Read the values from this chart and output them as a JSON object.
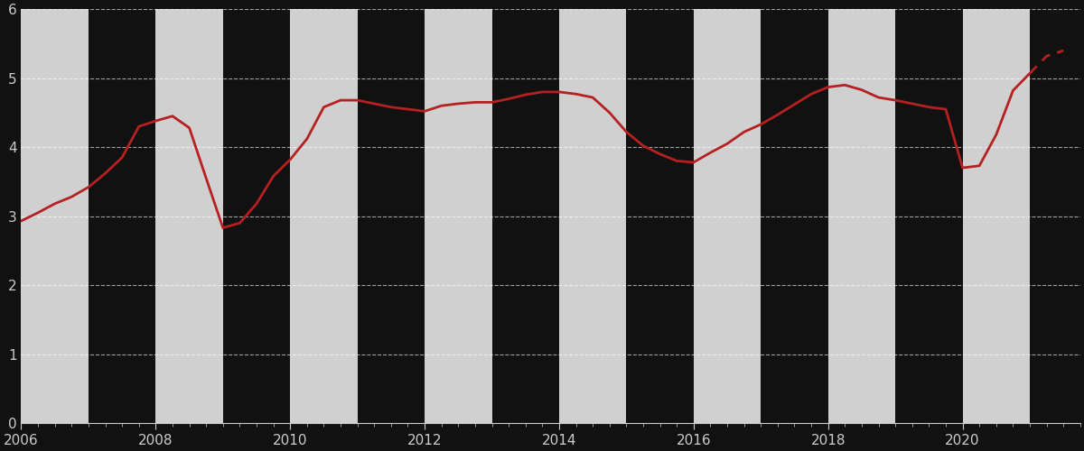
{
  "xlim": [
    2006.0,
    2021.75
  ],
  "ylim": [
    0,
    6
  ],
  "yticks": [
    0,
    1,
    2,
    3,
    4,
    5,
    6
  ],
  "xticks": [
    2006,
    2008,
    2010,
    2012,
    2014,
    2016,
    2018,
    2020
  ],
  "fig_bg_color": "#111111",
  "axes_bg_color": "#111111",
  "band_color_light": "#d0d0d0",
  "band_color_dark": "#111111",
  "line_color": "#b52020",
  "line_width": 2.0,
  "grid_color": "#ffffff",
  "tick_label_color": "#cccccc",
  "band_years": [
    [
      2006,
      2007,
      "#d0d0d0"
    ],
    [
      2007,
      2008,
      "#111111"
    ],
    [
      2008,
      2009,
      "#d0d0d0"
    ],
    [
      2009,
      2010,
      "#111111"
    ],
    [
      2010,
      2011,
      "#d0d0d0"
    ],
    [
      2011,
      2012,
      "#111111"
    ],
    [
      2012,
      2013,
      "#d0d0d0"
    ],
    [
      2013,
      2014,
      "#111111"
    ],
    [
      2014,
      2015,
      "#d0d0d0"
    ],
    [
      2015,
      2016,
      "#111111"
    ],
    [
      2016,
      2017,
      "#d0d0d0"
    ],
    [
      2017,
      2018,
      "#111111"
    ],
    [
      2018,
      2019,
      "#d0d0d0"
    ],
    [
      2019,
      2020,
      "#111111"
    ],
    [
      2020,
      2021,
      "#d0d0d0"
    ],
    [
      2021,
      2022,
      "#111111"
    ]
  ],
  "data_solid": {
    "x": [
      2006.0,
      2006.25,
      2006.5,
      2006.75,
      2007.0,
      2007.25,
      2007.5,
      2007.75,
      2008.0,
      2008.25,
      2008.5,
      2008.75,
      2009.0,
      2009.25,
      2009.5,
      2009.75,
      2010.0,
      2010.25,
      2010.5,
      2010.75,
      2011.0,
      2011.25,
      2011.5,
      2011.75,
      2012.0,
      2012.25,
      2012.5,
      2012.75,
      2013.0,
      2013.25,
      2013.5,
      2013.75,
      2014.0,
      2014.25,
      2014.5,
      2014.75,
      2015.0,
      2015.25,
      2015.5,
      2015.75,
      2016.0,
      2016.25,
      2016.5,
      2016.75,
      2017.0,
      2017.25,
      2017.5,
      2017.75,
      2018.0,
      2018.25,
      2018.5,
      2018.75,
      2019.0,
      2019.25,
      2019.5,
      2019.75,
      2020.0,
      2020.25,
      2020.5,
      2020.75,
      2021.0
    ],
    "y": [
      2.93,
      3.05,
      3.18,
      3.28,
      3.42,
      3.62,
      3.85,
      4.3,
      4.38,
      4.45,
      4.28,
      3.55,
      2.83,
      2.9,
      3.18,
      3.58,
      3.82,
      4.12,
      4.58,
      4.68,
      4.68,
      4.63,
      4.58,
      4.55,
      4.52,
      4.6,
      4.63,
      4.65,
      4.65,
      4.7,
      4.76,
      4.8,
      4.8,
      4.77,
      4.72,
      4.5,
      4.22,
      4.02,
      3.9,
      3.8,
      3.78,
      3.92,
      4.05,
      4.22,
      4.33,
      4.47,
      4.62,
      4.77,
      4.87,
      4.9,
      4.83,
      4.72,
      4.68,
      4.63,
      4.58,
      4.55,
      3.7,
      3.73,
      4.18,
      4.82,
      5.07
    ]
  },
  "data_dashed": {
    "x": [
      2021.0,
      2021.25,
      2021.5
    ],
    "y": [
      5.07,
      5.32,
      5.4
    ]
  }
}
